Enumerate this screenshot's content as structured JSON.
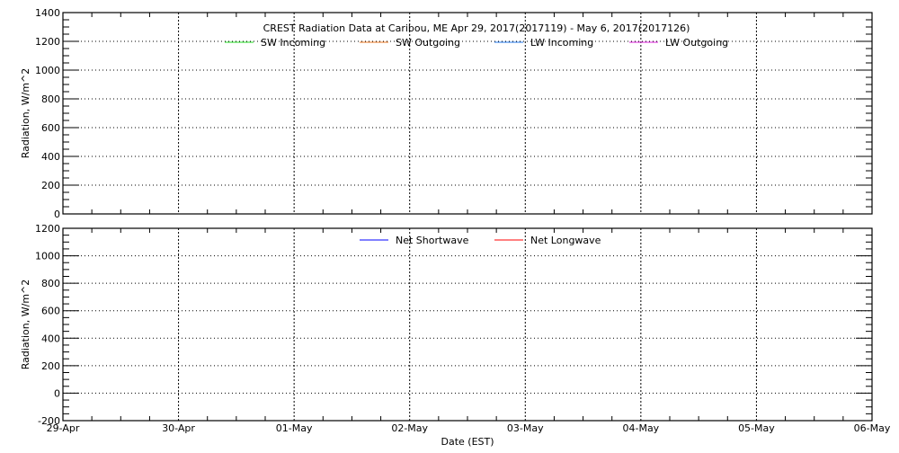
{
  "chart_data": [
    {
      "type": "line",
      "title": "CREST Radiation Data at Caribou, ME   Apr 29, 2017(2017119) - May  6, 2017(2017126)",
      "xlabel": "",
      "ylabel": "Radiation, W/m^2",
      "ylim": [
        0,
        1400
      ],
      "yticks": [
        0,
        200,
        400,
        600,
        800,
        1000,
        1200,
        1400
      ],
      "xticks": [
        "29-Apr",
        "30-Apr",
        "01-May",
        "02-May",
        "03-May",
        "04-May",
        "05-May",
        "06-May"
      ],
      "grid": true,
      "legend_position": "top-center",
      "series": [
        {
          "name": "SW Incoming",
          "color": "#22dd22",
          "values": []
        },
        {
          "name": "SW Outgoing",
          "color": "#ee7722",
          "values": []
        },
        {
          "name": "LW Incoming",
          "color": "#2277ee",
          "values": []
        },
        {
          "name": "LW Outgoing",
          "color": "#dd22dd",
          "values": []
        }
      ]
    },
    {
      "type": "line",
      "title": "",
      "xlabel": "Date (EST)",
      "ylabel": "Radiation, W/m^2",
      "ylim": [
        -200,
        1200
      ],
      "yticks": [
        -200,
        0,
        200,
        400,
        600,
        800,
        1000,
        1200
      ],
      "xticks": [
        "29-Apr",
        "30-Apr",
        "01-May",
        "02-May",
        "03-May",
        "04-May",
        "05-May",
        "06-May"
      ],
      "grid": true,
      "legend_position": "top-center",
      "series": [
        {
          "name": "Net Shortwave",
          "color": "#0000ff",
          "values": []
        },
        {
          "name": "Net Longwave",
          "color": "#ff0000",
          "values": []
        }
      ]
    }
  ]
}
